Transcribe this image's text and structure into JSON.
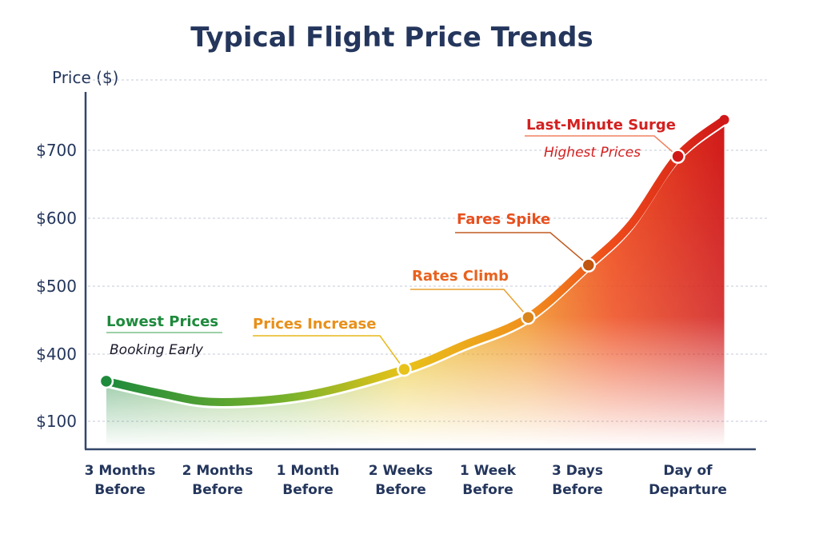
{
  "chart_data": {
    "type": "area",
    "title": "Typical Flight Price Trends",
    "ylabel": "Price ($)",
    "xlabel": "",
    "y_ticks": [
      "$100",
      "$400",
      "$500",
      "$600",
      "$700"
    ],
    "y_tick_values": [
      100,
      400,
      500,
      600,
      700
    ],
    "categories": [
      [
        "3 Months",
        "Before"
      ],
      [
        "2 Months",
        "Before"
      ],
      [
        "1 Month",
        "Before"
      ],
      [
        "2 Weeks",
        "Before"
      ],
      [
        "1 Week",
        "Before"
      ],
      [
        "3 Days",
        "Before"
      ],
      [
        "Day of",
        "Departure"
      ]
    ],
    "series": [
      {
        "points": [
          {
            "x": -0.14,
            "y": 279,
            "marker": true
          },
          {
            "x": 0.41,
            "y": 225
          },
          {
            "x": 1,
            "y": 186
          },
          {
            "x": 2,
            "y": 218
          },
          {
            "x": 3.04,
            "y": 332,
            "marker": true
          },
          {
            "x": 3.72,
            "y": 413
          },
          {
            "x": 4.45,
            "y": 454,
            "marker": true
          },
          {
            "x": 5.1,
            "y": 531,
            "marker": true
          },
          {
            "x": 5.49,
            "y": 592
          },
          {
            "x": 5.91,
            "y": 691,
            "marker": true
          },
          {
            "x": 6.33,
            "y": 745,
            "marker": true
          }
        ]
      }
    ],
    "grid": true,
    "colors": [
      "#1e8a3c",
      "#7cb32a",
      "#e8c21a",
      "#f0901e",
      "#e8501e",
      "#d01818"
    ],
    "annotations": [
      {
        "label": "Lowest Prices",
        "sublabel": "Booking Early",
        "color": "#1e8a3c",
        "subcolor": "#1a1a2a"
      },
      {
        "label": "Prices Increase",
        "color": "#e8901a"
      },
      {
        "label": "Rates Climb",
        "color": "#e8621e"
      },
      {
        "label": "Fares Spike",
        "color": "#e8501e"
      },
      {
        "label": "Last-Minute Surge",
        "sublabel": "Highest Prices",
        "color": "#d42020",
        "subcolor": "#d42020"
      }
    ]
  }
}
